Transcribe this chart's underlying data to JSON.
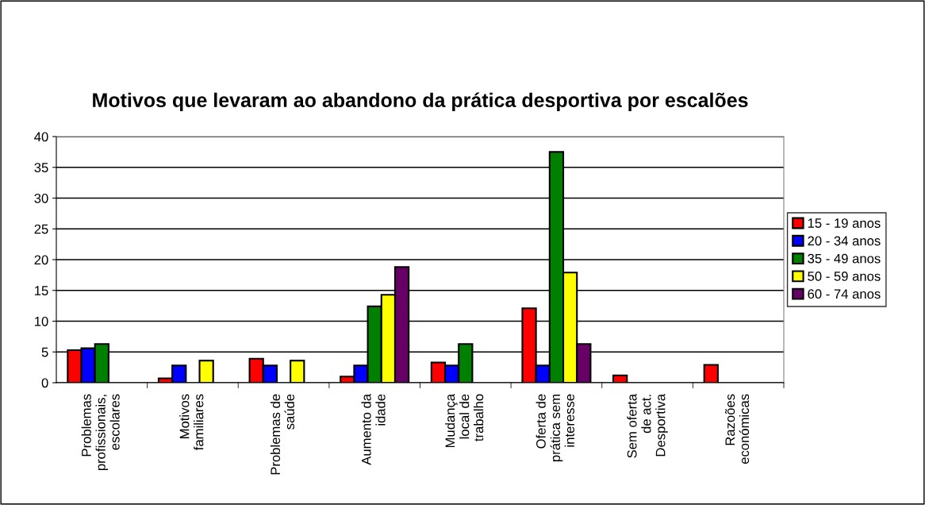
{
  "chart_data": {
    "type": "bar",
    "title": "Motivos que levaram ao abandono da prática desportiva por escalões",
    "categories": [
      "Problemas\nprofissionais,\nescolares",
      "Motivos\nfamiliares",
      "Problemas de\nsaúde",
      "Aumento da\nidade",
      "Mudança\nlocal de\ntrabalho",
      "Oferta de\nprática sem\ninteresse",
      "Sem oferta\nde act.\nDesportiva",
      "Razoões\neconómicas"
    ],
    "series": [
      {
        "name": "15 - 19 anos",
        "color": "#ff0000",
        "values": [
          5.3,
          0.7,
          3.9,
          1.0,
          3.3,
          12.1,
          1.2,
          2.9
        ]
      },
      {
        "name": "20 - 34 anos",
        "color": "#0000ff",
        "values": [
          5.6,
          2.8,
          2.8,
          2.8,
          2.8,
          2.8,
          null,
          null
        ]
      },
      {
        "name": "35 - 49 anos",
        "color": "#008000",
        "values": [
          6.3,
          null,
          null,
          12.4,
          6.3,
          37.5,
          null,
          null
        ]
      },
      {
        "name": "50 - 59 anos",
        "color": "#ffff00",
        "values": [
          null,
          3.6,
          3.6,
          14.3,
          null,
          17.9,
          null,
          null
        ]
      },
      {
        "name": "60 - 74 anos",
        "color": "#660066",
        "values": [
          null,
          null,
          null,
          18.8,
          null,
          6.3,
          null,
          null
        ]
      }
    ],
    "ylim": [
      0,
      40
    ],
    "yticks": [
      0,
      5,
      10,
      15,
      20,
      25,
      30,
      35,
      40
    ],
    "grid": "y",
    "legend": "right"
  }
}
